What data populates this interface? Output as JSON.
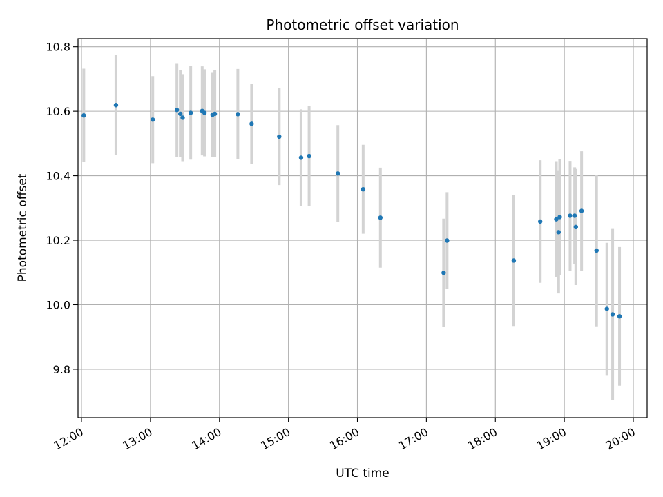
{
  "chart_data": {
    "type": "scatter",
    "title": "Photometric offset variation",
    "xlabel": "UTC time",
    "ylabel": "Photometric offset",
    "x_ticks": [
      "12:00",
      "13:00",
      "14:00",
      "15:00",
      "16:00",
      "17:00",
      "18:00",
      "19:00",
      "20:00"
    ],
    "y_ticks": [
      9.8,
      10.0,
      10.2,
      10.4,
      10.6,
      10.8
    ],
    "xlim": [
      "11:57",
      "20:12"
    ],
    "ylim": [
      9.65,
      10.825
    ],
    "grid": true,
    "colors": {
      "point": "#1f77b4",
      "error_bar": "#d3d3d3",
      "grid": "#b0b0b0"
    },
    "points": [
      {
        "x": "12:02",
        "y": 10.587,
        "err": 0.145
      },
      {
        "x": "12:30",
        "y": 10.619,
        "err": 0.155
      },
      {
        "x": "13:02",
        "y": 10.574,
        "err": 0.135
      },
      {
        "x": "13:23",
        "y": 10.604,
        "err": 0.145
      },
      {
        "x": "13:26",
        "y": 10.592,
        "err": 0.135
      },
      {
        "x": "13:28",
        "y": 10.58,
        "err": 0.135
      },
      {
        "x": "13:35",
        "y": 10.595,
        "err": 0.145
      },
      {
        "x": "13:45",
        "y": 10.601,
        "err": 0.138
      },
      {
        "x": "13:47",
        "y": 10.595,
        "err": 0.135
      },
      {
        "x": "13:54",
        "y": 10.589,
        "err": 0.13
      },
      {
        "x": "13:56",
        "y": 10.592,
        "err": 0.135
      },
      {
        "x": "14:16",
        "y": 10.591,
        "err": 0.14
      },
      {
        "x": "14:28",
        "y": 10.561,
        "err": 0.125
      },
      {
        "x": "14:52",
        "y": 10.521,
        "err": 0.15
      },
      {
        "x": "15:11",
        "y": 10.456,
        "err": 0.15
      },
      {
        "x": "15:18",
        "y": 10.461,
        "err": 0.155
      },
      {
        "x": "15:43",
        "y": 10.407,
        "err": 0.15
      },
      {
        "x": "16:05",
        "y": 10.358,
        "err": 0.138
      },
      {
        "x": "16:20",
        "y": 10.27,
        "err": 0.155
      },
      {
        "x": "17:15",
        "y": 10.099,
        "err": 0.168
      },
      {
        "x": "17:18",
        "y": 10.199,
        "err": 0.15
      },
      {
        "x": "18:16",
        "y": 10.137,
        "err": 0.203
      },
      {
        "x": "18:39",
        "y": 10.258,
        "err": 0.19
      },
      {
        "x": "18:53",
        "y": 10.265,
        "err": 0.18
      },
      {
        "x": "18:55",
        "y": 10.225,
        "err": 0.19
      },
      {
        "x": "18:56",
        "y": 10.272,
        "err": 0.18
      },
      {
        "x": "19:05",
        "y": 10.276,
        "err": 0.17
      },
      {
        "x": "19:09",
        "y": 10.276,
        "err": 0.15
      },
      {
        "x": "19:10",
        "y": 10.241,
        "err": 0.18
      },
      {
        "x": "19:15",
        "y": 10.291,
        "err": 0.185
      },
      {
        "x": "19:28",
        "y": 10.168,
        "err": 0.235
      },
      {
        "x": "19:37",
        "y": 9.987,
        "err": 0.205
      },
      {
        "x": "19:42",
        "y": 9.97,
        "err": 0.265
      },
      {
        "x": "19:48",
        "y": 9.964,
        "err": 0.215
      }
    ]
  }
}
